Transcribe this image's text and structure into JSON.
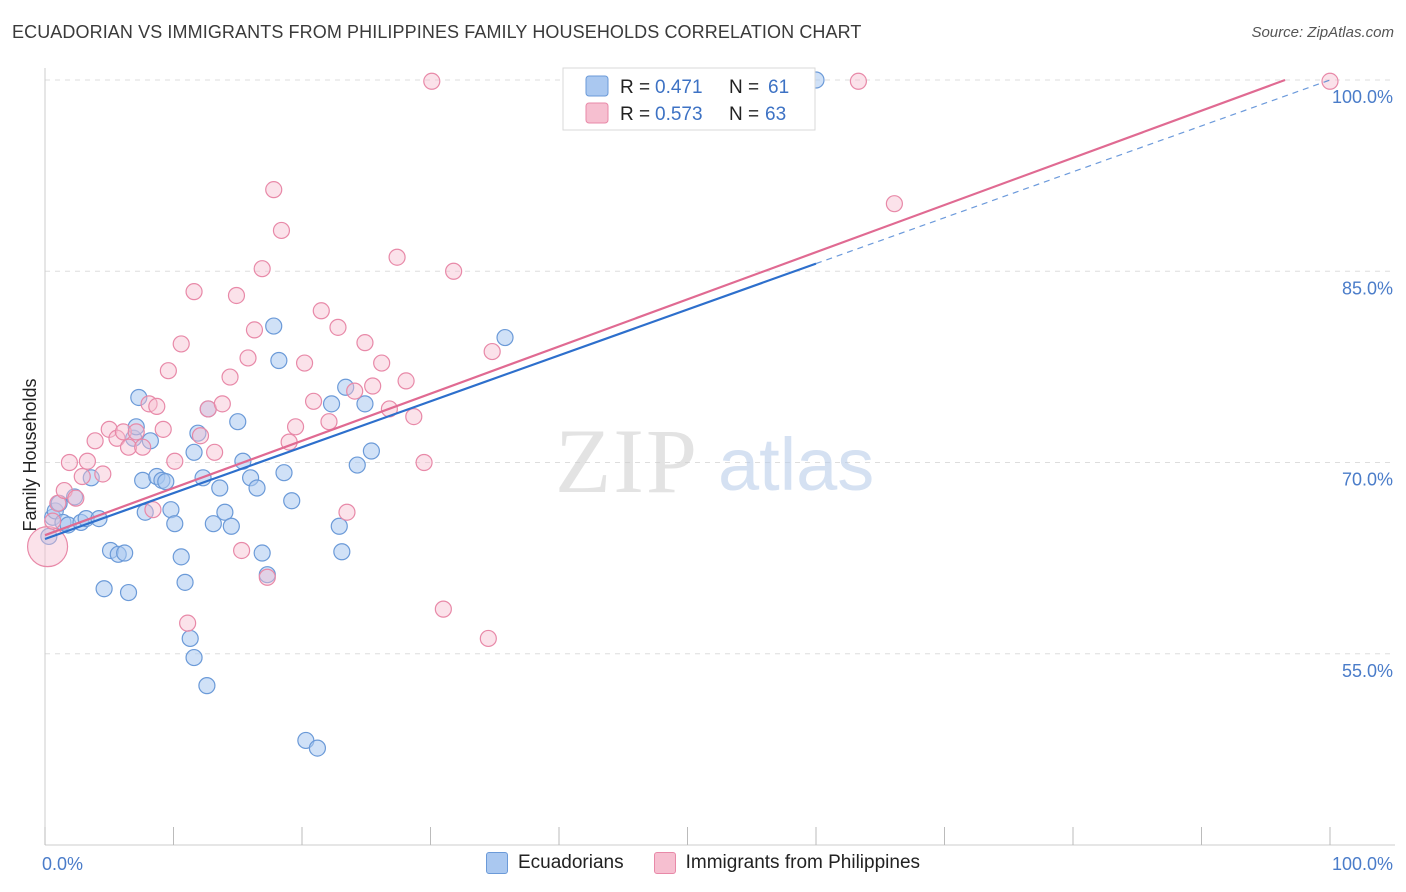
{
  "title": "ECUADORIAN VS IMMIGRANTS FROM PHILIPPINES FAMILY HOUSEHOLDS CORRELATION CHART",
  "source": "Source: ZipAtlas.com",
  "watermark": {
    "zip": "ZIP",
    "atlas": "atlas"
  },
  "colors": {
    "blue_fill": "#aac8f0",
    "blue_stroke": "#6b9ad8",
    "blue_line": "#2d6fcc",
    "pink_fill": "#f6bfd0",
    "pink_stroke": "#e889a8",
    "pink_line": "#e06a92",
    "tick_text": "#4a7cc9",
    "grid": "#dddddd"
  },
  "legend_box": {
    "rows": [
      {
        "r_label": "R =",
        "r_value": "0.471",
        "n_label": "N =",
        "n_value": "61"
      },
      {
        "r_label": "R =",
        "r_value": "0.573",
        "n_label": "N =",
        "n_value": "63"
      }
    ]
  },
  "bottom_legend": [
    "Ecuadorians",
    "Immigrants from Philippines"
  ],
  "chart_data": {
    "type": "scatter",
    "title": "ECUADORIAN VS IMMIGRANTS FROM PHILIPPINES FAMILY HOUSEHOLDS CORRELATION CHART",
    "xlabel": "",
    "ylabel": "Family Households",
    "xlim": [
      0,
      100
    ],
    "ylim": [
      40,
      100
    ],
    "x_tick_labels": [
      "0.0%",
      "100.0%"
    ],
    "y_ticks": [
      55,
      70,
      85,
      100
    ],
    "y_tick_labels": [
      "55.0%",
      "70.0%",
      "85.0%",
      "100.0%"
    ],
    "grid": true,
    "legend_placement": "top-center",
    "series": [
      {
        "name": "Ecuadorians",
        "R": 0.471,
        "N": 61,
        "trend": {
          "x0": 0,
          "y0": 64.0,
          "x1": 60,
          "y1": 85.6,
          "dashed_to_x": 100,
          "dashed_to_y": 100.0
        },
        "points": [
          [
            0.3,
            64.2
          ],
          [
            0.6,
            65.7
          ],
          [
            0.8,
            66.2
          ],
          [
            1.1,
            66.8
          ],
          [
            1.4,
            65.3
          ],
          [
            1.8,
            65.1
          ],
          [
            2.3,
            67.3
          ],
          [
            2.8,
            65.3
          ],
          [
            3.2,
            65.6
          ],
          [
            3.6,
            68.8
          ],
          [
            4.2,
            65.6
          ],
          [
            4.6,
            60.1
          ],
          [
            5.1,
            63.1
          ],
          [
            5.7,
            62.8
          ],
          [
            6.2,
            62.9
          ],
          [
            6.5,
            59.8
          ],
          [
            6.9,
            71.9
          ],
          [
            7.1,
            72.8
          ],
          [
            7.3,
            75.1
          ],
          [
            7.6,
            68.6
          ],
          [
            7.8,
            66.1
          ],
          [
            8.2,
            71.7
          ],
          [
            8.7,
            68.9
          ],
          [
            9.1,
            68.6
          ],
          [
            9.4,
            68.5
          ],
          [
            9.8,
            66.3
          ],
          [
            10.1,
            65.2
          ],
          [
            10.6,
            62.6
          ],
          [
            10.9,
            60.6
          ],
          [
            11.3,
            56.2
          ],
          [
            11.6,
            54.7
          ],
          [
            11.9,
            72.3
          ],
          [
            12.3,
            68.8
          ],
          [
            12.7,
            74.2
          ],
          [
            13.1,
            65.2
          ],
          [
            13.6,
            68.0
          ],
          [
            14.0,
            66.1
          ],
          [
            14.5,
            65.0
          ],
          [
            15.0,
            73.2
          ],
          [
            15.4,
            70.1
          ],
          [
            16.0,
            68.8
          ],
          [
            16.5,
            68.0
          ],
          [
            16.9,
            62.9
          ],
          [
            17.3,
            61.2
          ],
          [
            17.8,
            80.7
          ],
          [
            18.2,
            78.0
          ],
          [
            18.6,
            69.2
          ],
          [
            19.2,
            67.0
          ],
          [
            20.3,
            48.2
          ],
          [
            21.2,
            47.6
          ],
          [
            22.3,
            74.6
          ],
          [
            22.9,
            65.0
          ],
          [
            23.1,
            63.0
          ],
          [
            23.4,
            75.9
          ],
          [
            24.3,
            69.8
          ],
          [
            24.9,
            74.6
          ],
          [
            25.4,
            70.9
          ],
          [
            11.6,
            70.8
          ],
          [
            12.6,
            52.5
          ],
          [
            35.8,
            79.8
          ],
          [
            60.0,
            100.0
          ]
        ]
      },
      {
        "name": "Immigrants from Philippines",
        "R": 0.573,
        "N": 63,
        "trend": {
          "x0": 0,
          "y0": 64.3,
          "x1": 96.5,
          "y1": 100.0
        },
        "points": [
          [
            0.2,
            63.4
          ],
          [
            0.6,
            65.4
          ],
          [
            1.0,
            66.8
          ],
          [
            1.5,
            67.8
          ],
          [
            1.9,
            70.0
          ],
          [
            2.4,
            67.2
          ],
          [
            2.9,
            68.9
          ],
          [
            3.3,
            70.1
          ],
          [
            3.9,
            71.7
          ],
          [
            4.5,
            69.1
          ],
          [
            5.0,
            72.6
          ],
          [
            5.6,
            71.9
          ],
          [
            6.1,
            72.4
          ],
          [
            6.5,
            71.2
          ],
          [
            7.1,
            72.4
          ],
          [
            7.6,
            71.2
          ],
          [
            8.1,
            74.6
          ],
          [
            8.4,
            66.3
          ],
          [
            8.7,
            74.4
          ],
          [
            9.2,
            72.6
          ],
          [
            9.6,
            77.2
          ],
          [
            10.1,
            70.1
          ],
          [
            10.6,
            79.3
          ],
          [
            11.1,
            57.4
          ],
          [
            11.6,
            83.4
          ],
          [
            12.1,
            72.1
          ],
          [
            12.7,
            74.2
          ],
          [
            13.2,
            70.8
          ],
          [
            13.8,
            74.6
          ],
          [
            14.4,
            76.7
          ],
          [
            14.9,
            83.1
          ],
          [
            15.3,
            63.1
          ],
          [
            15.8,
            78.2
          ],
          [
            16.3,
            80.4
          ],
          [
            16.9,
            85.2
          ],
          [
            17.3,
            61.0
          ],
          [
            17.8,
            91.4
          ],
          [
            18.4,
            88.2
          ],
          [
            19.0,
            71.6
          ],
          [
            19.5,
            72.8
          ],
          [
            20.2,
            77.8
          ],
          [
            20.9,
            74.8
          ],
          [
            21.5,
            81.9
          ],
          [
            22.1,
            73.2
          ],
          [
            22.8,
            80.6
          ],
          [
            23.5,
            66.1
          ],
          [
            24.1,
            75.6
          ],
          [
            24.9,
            79.4
          ],
          [
            25.5,
            76.0
          ],
          [
            26.2,
            77.8
          ],
          [
            26.8,
            74.2
          ],
          [
            27.4,
            86.1
          ],
          [
            28.1,
            76.4
          ],
          [
            28.7,
            73.6
          ],
          [
            29.5,
            70.0
          ],
          [
            30.1,
            99.9
          ],
          [
            31.0,
            58.5
          ],
          [
            31.8,
            85.0
          ],
          [
            34.5,
            56.2
          ],
          [
            34.8,
            78.7
          ],
          [
            63.3,
            99.9
          ],
          [
            66.1,
            90.3
          ],
          [
            100.0,
            99.9
          ]
        ]
      }
    ]
  }
}
